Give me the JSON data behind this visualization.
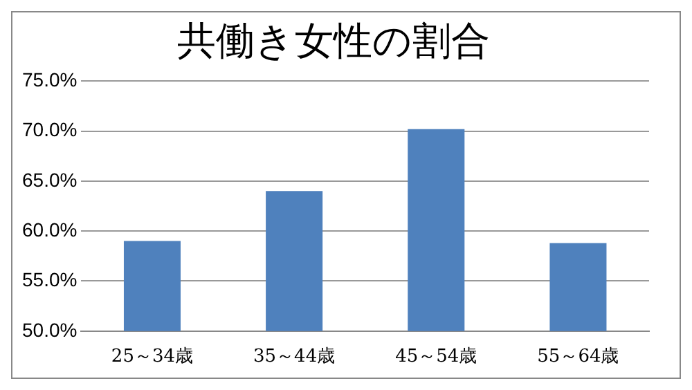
{
  "chart_data": {
    "type": "bar",
    "title": "共働き女性の割合",
    "categories": [
      "25～34歳",
      "35～44歳",
      "45～54歳",
      "55～64歳"
    ],
    "values": [
      59.0,
      64.0,
      70.2,
      58.8
    ],
    "color": "#4f81bd",
    "ylim": [
      50,
      75
    ],
    "yticks": [
      {
        "value": 50,
        "label": "50.0%"
      },
      {
        "value": 55,
        "label": "55.0%"
      },
      {
        "value": 60,
        "label": "60.0%"
      },
      {
        "value": 65,
        "label": "65.0%"
      },
      {
        "value": 70,
        "label": "70.0%"
      },
      {
        "value": 75,
        "label": "75.0%"
      }
    ],
    "grid": "y",
    "legend": false
  }
}
